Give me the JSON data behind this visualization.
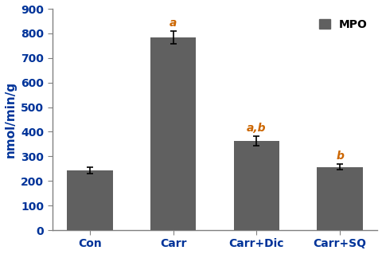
{
  "categories": [
    "Con",
    "Carr",
    "Carr+Dic",
    "Carr+SQ"
  ],
  "values": [
    243,
    783,
    363,
    257
  ],
  "errors": [
    14,
    25,
    20,
    12
  ],
  "bar_color": "#606060",
  "annotations": [
    "",
    "a",
    "a,b",
    "b"
  ],
  "annotation_color": "#cc6600",
  "ylabel": "nmol/min/g",
  "ylim": [
    0,
    900
  ],
  "yticks": [
    0,
    100,
    200,
    300,
    400,
    500,
    600,
    700,
    800,
    900
  ],
  "legend_label": "MPO",
  "legend_color": "#606060",
  "bar_width": 0.55,
  "annotation_fontsize": 10,
  "axis_fontsize": 11,
  "tick_fontsize": 10,
  "legend_fontsize": 10,
  "background_color": "#ffffff"
}
